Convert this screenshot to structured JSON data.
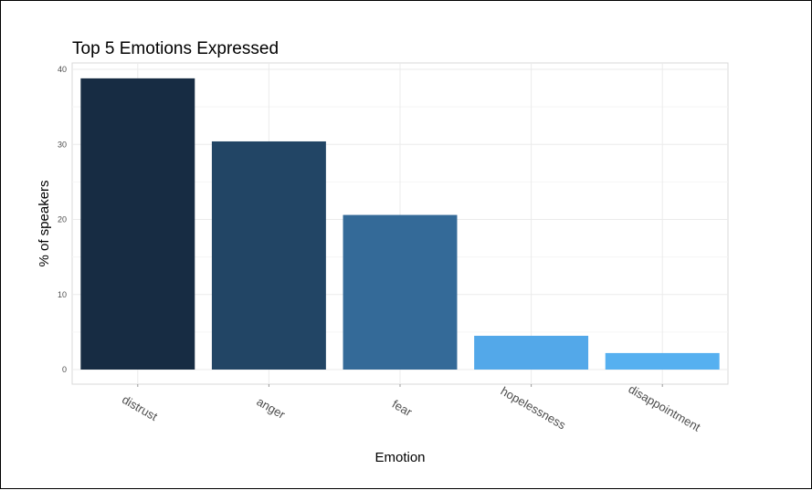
{
  "chart_data": {
    "type": "bar",
    "title": "Top 5 Emotions Expressed",
    "xlabel": "Emotion",
    "ylabel": "% of speakers",
    "categories": [
      "distrust",
      "anger",
      "fear",
      "hopelessness",
      "disappointment"
    ],
    "values": [
      38.8,
      30.4,
      20.6,
      4.5,
      2.2
    ],
    "ylim": [
      0,
      40
    ],
    "yticks": [
      0,
      10,
      20,
      30,
      40
    ],
    "grid": true,
    "legend": "none",
    "colors": [
      "#172c43",
      "#224565",
      "#346a98",
      "#53a8e9",
      "#56b0f0"
    ]
  }
}
